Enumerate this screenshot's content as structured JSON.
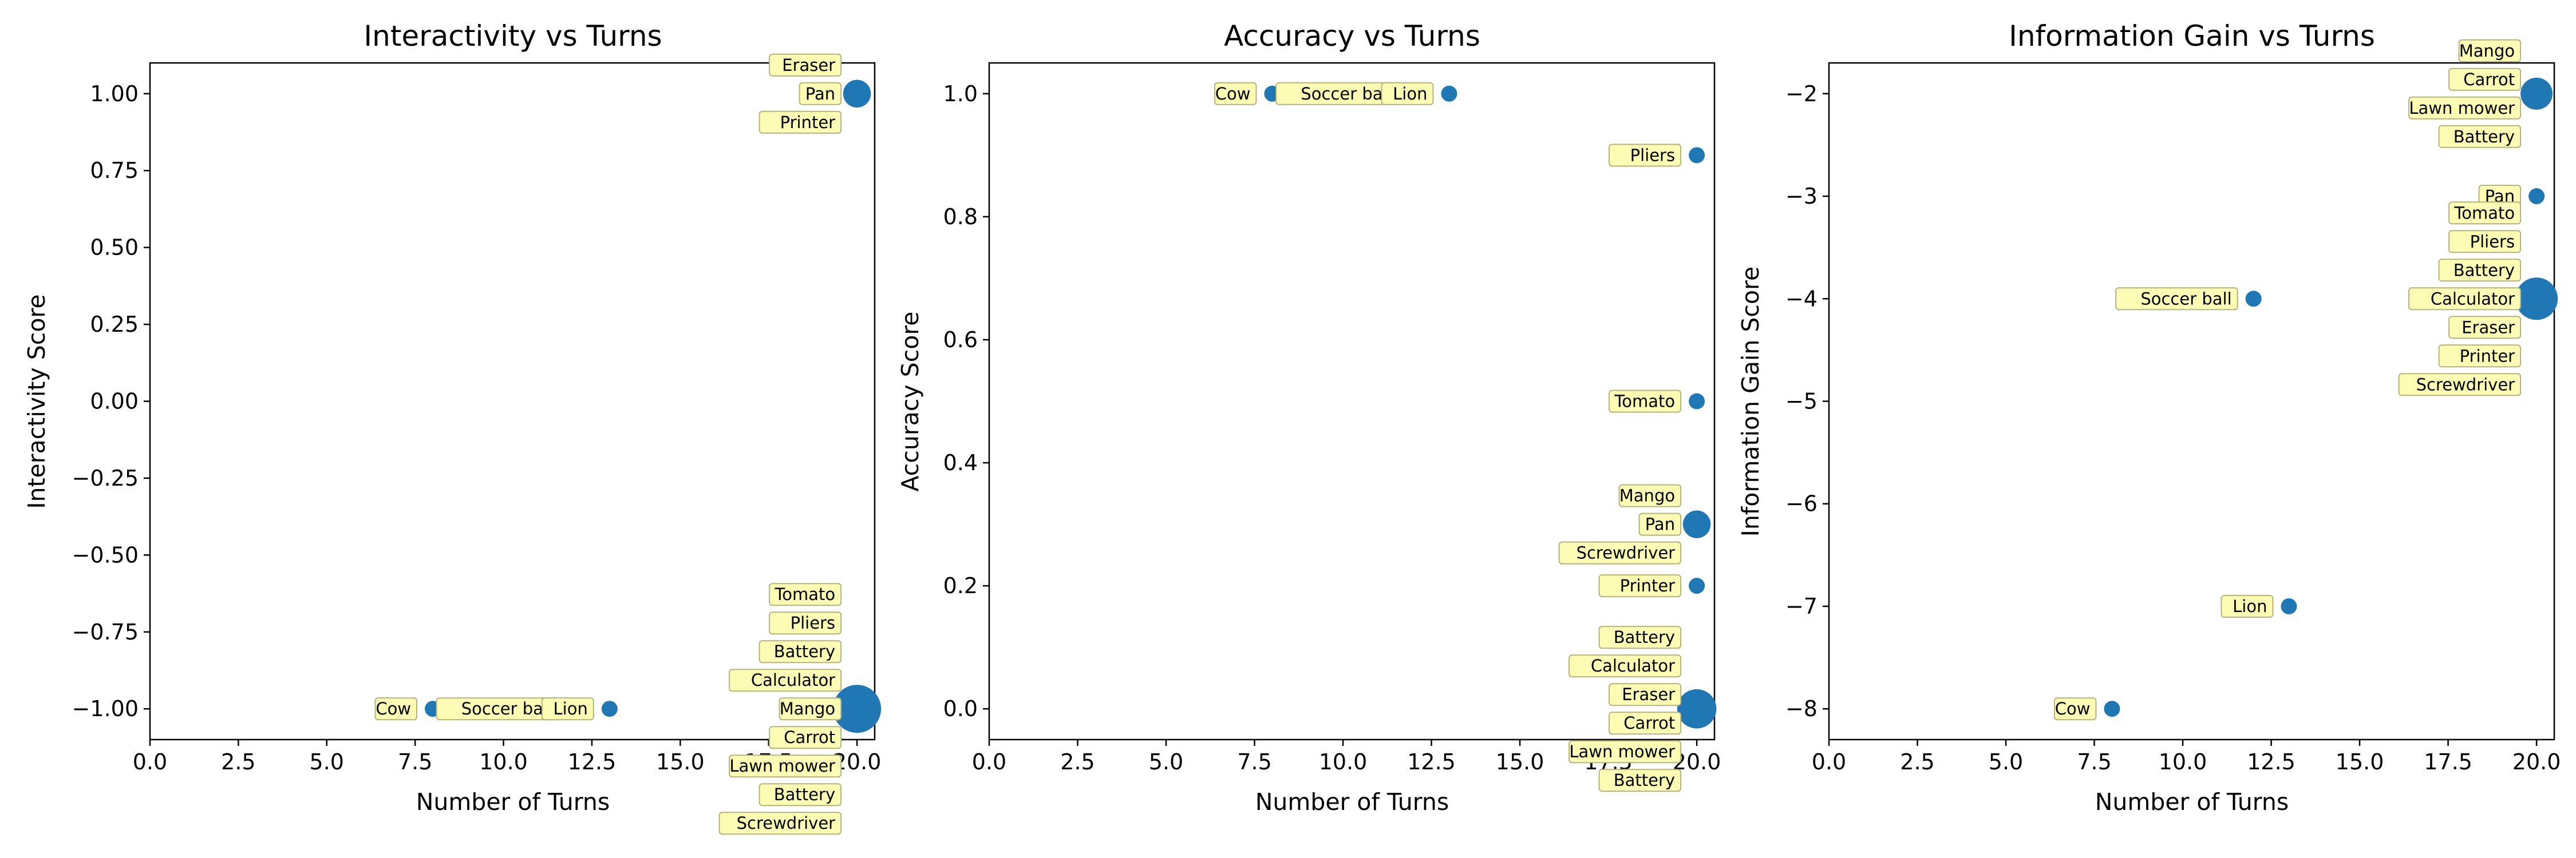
{
  "chart_data": [
    {
      "type": "scatter",
      "title": "Interactivity vs Turns",
      "xlabel": "Number of Turns",
      "ylabel": "Interactivity Score",
      "xlim": [
        0,
        20.5
      ],
      "ylim": [
        -1.1,
        1.1
      ],
      "xticks": [
        0,
        2.5,
        5,
        7.5,
        10,
        12.5,
        15,
        17.5,
        20
      ],
      "xtick_labels": [
        "0.0",
        "2.5",
        "5.0",
        "7.5",
        "10.0",
        "12.5",
        "15.0",
        "17.5",
        "20.0"
      ],
      "yticks": [
        -1,
        -0.75,
        -0.5,
        -0.25,
        0,
        0.25,
        0.5,
        0.75,
        1
      ],
      "ytick_labels": [
        "−1.00",
        "−0.75",
        "−0.50",
        "−0.25",
        "0.00",
        "0.25",
        "0.50",
        "0.75",
        "1.00"
      ],
      "color": "#1f77b4",
      "annotation_color": "#fdfcb5",
      "points": [
        {
          "x": 8,
          "y": -1,
          "count": 1
        },
        {
          "x": 12,
          "y": -1,
          "count": 1
        },
        {
          "x": 13,
          "y": -1,
          "count": 1
        },
        {
          "x": 20,
          "y": 1,
          "count": 3
        },
        {
          "x": 20,
          "y": -1,
          "count": 9
        }
      ],
      "annotations": [
        {
          "text": "Eraser",
          "x": 20,
          "y": 1,
          "stack": -1
        },
        {
          "text": "Pan",
          "x": 20,
          "y": 1,
          "stack": 0
        },
        {
          "text": "Printer",
          "x": 20,
          "y": 1,
          "stack": 1
        },
        {
          "text": "Tomato",
          "x": 20,
          "y": -1,
          "stack": -4
        },
        {
          "text": "Pliers",
          "x": 20,
          "y": -1,
          "stack": -3
        },
        {
          "text": "Battery",
          "x": 20,
          "y": -1,
          "stack": -2
        },
        {
          "text": "Calculator",
          "x": 20,
          "y": -1,
          "stack": -1
        },
        {
          "text": "Mango",
          "x": 20,
          "y": -1,
          "stack": 0
        },
        {
          "text": "Carrot",
          "x": 20,
          "y": -1,
          "stack": 1
        },
        {
          "text": "Lawn mower",
          "x": 20,
          "y": -1,
          "stack": 2
        },
        {
          "text": "Battery",
          "x": 20,
          "y": -1,
          "stack": 3
        },
        {
          "text": "Screwdriver",
          "x": 20,
          "y": -1,
          "stack": 4
        },
        {
          "text": "Cow",
          "x": 8,
          "y": -1,
          "stack": 0
        },
        {
          "text": "Soccer ball",
          "x": 12,
          "y": -1,
          "stack": 0
        },
        {
          "text": "Lion",
          "x": 13,
          "y": -1,
          "stack": 0
        }
      ]
    },
    {
      "type": "scatter",
      "title": "Accuracy vs Turns",
      "xlabel": "Number of Turns",
      "ylabel": "Accuracy Score",
      "xlim": [
        0,
        20.5
      ],
      "ylim": [
        -0.05,
        1.05
      ],
      "xticks": [
        0,
        2.5,
        5,
        7.5,
        10,
        12.5,
        15,
        17.5,
        20
      ],
      "xtick_labels": [
        "0.0",
        "2.5",
        "5.0",
        "7.5",
        "10.0",
        "12.5",
        "15.0",
        "17.5",
        "20.0"
      ],
      "yticks": [
        0,
        0.2,
        0.4,
        0.6,
        0.8,
        1
      ],
      "ytick_labels": [
        "0.0",
        "0.2",
        "0.4",
        "0.6",
        "0.8",
        "1.0"
      ],
      "color": "#1f77b4",
      "annotation_color": "#fdfcb5",
      "points": [
        {
          "x": 8,
          "y": 1,
          "count": 1
        },
        {
          "x": 12,
          "y": 1,
          "count": 1
        },
        {
          "x": 13,
          "y": 1,
          "count": 1
        },
        {
          "x": 20,
          "y": 0.9,
          "count": 1
        },
        {
          "x": 20,
          "y": 0.5,
          "count": 1
        },
        {
          "x": 20,
          "y": 0.3,
          "count": 3
        },
        {
          "x": 20,
          "y": 0.2,
          "count": 1
        },
        {
          "x": 20,
          "y": 0,
          "count": 6
        }
      ],
      "annotations": [
        {
          "text": "Cow",
          "x": 8,
          "y": 1,
          "stack": 0
        },
        {
          "text": "Soccer ball",
          "x": 12,
          "y": 1,
          "stack": 0
        },
        {
          "text": "Lion",
          "x": 13,
          "y": 1,
          "stack": 0
        },
        {
          "text": "Pliers",
          "x": 20,
          "y": 0.9,
          "stack": 0
        },
        {
          "text": "Tomato",
          "x": 20,
          "y": 0.5,
          "stack": 0
        },
        {
          "text": "Mango",
          "x": 20,
          "y": 0.3,
          "stack": -1
        },
        {
          "text": "Pan",
          "x": 20,
          "y": 0.3,
          "stack": 0
        },
        {
          "text": "Screwdriver",
          "x": 20,
          "y": 0.3,
          "stack": 1
        },
        {
          "text": "Printer",
          "x": 20,
          "y": 0.2,
          "stack": 0
        },
        {
          "text": "Battery",
          "x": 20,
          "y": 0,
          "stack": -2.5
        },
        {
          "text": "Calculator",
          "x": 20,
          "y": 0,
          "stack": -1.5
        },
        {
          "text": "Eraser",
          "x": 20,
          "y": 0,
          "stack": -0.5
        },
        {
          "text": "Carrot",
          "x": 20,
          "y": 0,
          "stack": 0.5
        },
        {
          "text": "Lawn mower",
          "x": 20,
          "y": 0,
          "stack": 1.5
        },
        {
          "text": "Battery",
          "x": 20,
          "y": 0,
          "stack": 2.5
        }
      ]
    },
    {
      "type": "scatter",
      "title": "Information Gain vs Turns",
      "xlabel": "Number of Turns",
      "ylabel": "Information Gain Score",
      "xlim": [
        0,
        20.5
      ],
      "ylim": [
        -8.3,
        -1.7
      ],
      "xticks": [
        0,
        2.5,
        5,
        7.5,
        10,
        12.5,
        15,
        17.5,
        20
      ],
      "xtick_labels": [
        "0.0",
        "2.5",
        "5.0",
        "7.5",
        "10.0",
        "12.5",
        "15.0",
        "17.5",
        "20.0"
      ],
      "yticks": [
        -8,
        -7,
        -6,
        -5,
        -4,
        -3,
        -2
      ],
      "ytick_labels": [
        "−8",
        "−7",
        "−6",
        "−5",
        "−4",
        "−3",
        "−2"
      ],
      "color": "#1f77b4",
      "annotation_color": "#fdfcb5",
      "points": [
        {
          "x": 8,
          "y": -8,
          "count": 1
        },
        {
          "x": 13,
          "y": -7,
          "count": 1
        },
        {
          "x": 12,
          "y": -4,
          "count": 1
        },
        {
          "x": 20,
          "y": -2,
          "count": 4
        },
        {
          "x": 20,
          "y": -3,
          "count": 1
        },
        {
          "x": 20,
          "y": -4,
          "count": 7
        }
      ],
      "annotations": [
        {
          "text": "Cow",
          "x": 8,
          "y": -8,
          "stack": 0
        },
        {
          "text": "Lion",
          "x": 13,
          "y": -7,
          "stack": 0
        },
        {
          "text": "Soccer ball",
          "x": 12,
          "y": -4,
          "stack": 0
        },
        {
          "text": "Mango",
          "x": 20,
          "y": -2,
          "stack": -1.5
        },
        {
          "text": "Carrot",
          "x": 20,
          "y": -2,
          "stack": -0.5
        },
        {
          "text": "Lawn mower",
          "x": 20,
          "y": -2,
          "stack": 0.5
        },
        {
          "text": "Battery",
          "x": 20,
          "y": -2,
          "stack": 1.5
        },
        {
          "text": "Pan",
          "x": 20,
          "y": -3,
          "stack": 0
        },
        {
          "text": "Tomato",
          "x": 20,
          "y": -4,
          "stack": -3
        },
        {
          "text": "Pliers",
          "x": 20,
          "y": -4,
          "stack": -2
        },
        {
          "text": "Battery",
          "x": 20,
          "y": -4,
          "stack": -1
        },
        {
          "text": "Calculator",
          "x": 20,
          "y": -4,
          "stack": 0
        },
        {
          "text": "Eraser",
          "x": 20,
          "y": -4,
          "stack": 1
        },
        {
          "text": "Printer",
          "x": 20,
          "y": -4,
          "stack": 2
        },
        {
          "text": "Screwdriver",
          "x": 20,
          "y": -4,
          "stack": 3
        }
      ]
    }
  ]
}
